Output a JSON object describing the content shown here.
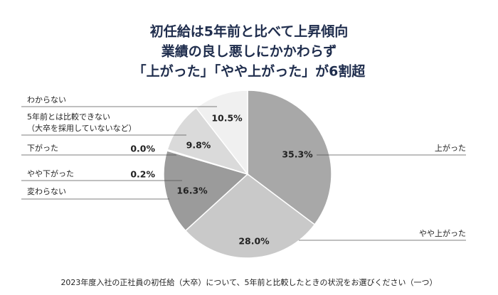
{
  "chart_data": {
    "type": "pie",
    "title": [
      "初任給は5年前と比べて上昇傾向",
      "業績の良し悪しにかかわらず",
      "「上がった」「やや上がった」が6割超"
    ],
    "categories": [
      "上がった",
      "やや上がった",
      "変わらない",
      "やや下がった",
      "下がった",
      "5年前とは比較できない\n（大卒を採用していないなど）",
      "わからない"
    ],
    "values": [
      35.3,
      28.0,
      16.3,
      0.2,
      0.0,
      9.8,
      10.5
    ],
    "value_labels": [
      "35.3%",
      "28.0%",
      "16.3%",
      "0.2%",
      "0.0%",
      "9.8%",
      "10.5%"
    ],
    "colors": [
      "#a8a8a8",
      "#c9c9c9",
      "#9b9b9b",
      "#bdbdbd",
      "#cfcfcf",
      "#dadada",
      "#f0f0f0"
    ],
    "note": "2023年度入社の正社員の初任給（大卒）について、5年前と比較したときの状況をお選びください（一つ）"
  }
}
